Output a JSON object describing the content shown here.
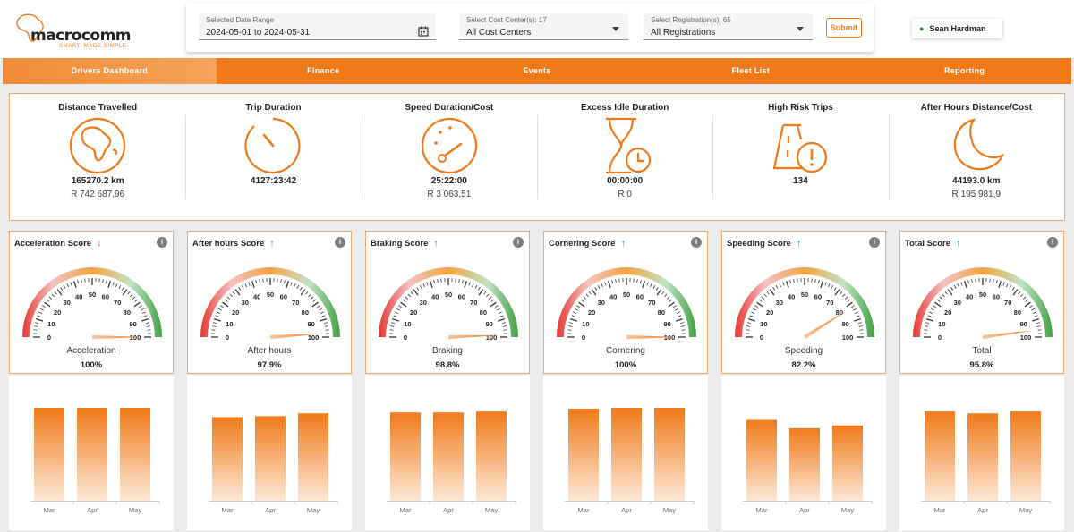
{
  "app": {
    "logo_text_a": "macro",
    "logo_text_b": "comm",
    "logo_tagline": "SMART. MADE SIMPLE"
  },
  "filters": {
    "date_range": {
      "label": "Selected Date Range",
      "value": "2024-05-01 to 2024-05-31",
      "icon": "calendar-icon"
    },
    "cost_center": {
      "label": "Select Cost Center(s): 17",
      "value": "All Cost Centers"
    },
    "registration": {
      "label": "Select Registration(s): 65",
      "value": "All Registrations"
    },
    "submit_label": "Submit"
  },
  "user": {
    "name": "Sean Hardman",
    "icon": "user-icon"
  },
  "nav": {
    "tabs": [
      {
        "label": "Drivers Dashboard",
        "active": true
      },
      {
        "label": "Finance",
        "active": false
      },
      {
        "label": "Events",
        "active": false
      },
      {
        "label": "Fleet List",
        "active": false
      },
      {
        "label": "Reporting",
        "active": false
      }
    ]
  },
  "summary": [
    {
      "title": "Distance Travelled",
      "icon": "globe-icon",
      "value": "165270.2 km",
      "cost": "R 742 687,96"
    },
    {
      "title": "Trip Duration",
      "icon": "timer-icon",
      "value": "4127:23:42",
      "cost": ""
    },
    {
      "title": "Speed Duration/Cost",
      "icon": "speedometer-icon",
      "value": "25:22:00",
      "cost": "R 3 063,51"
    },
    {
      "title": "Excess Idle Duration",
      "icon": "hourglass-clock-icon",
      "value": "00:00:00",
      "cost": "R 0"
    },
    {
      "title": "High Risk Trips",
      "icon": "road-warning-icon",
      "value": "134",
      "cost": ""
    },
    {
      "title": "After Hours Distance/Cost",
      "icon": "moon-icon",
      "value": "44193.0 km",
      "cost": "R 195 981,9"
    }
  ],
  "gauge_ticks": [
    "0",
    "10",
    "20",
    "30",
    "40",
    "50",
    "60",
    "70",
    "80",
    "90",
    "100"
  ],
  "colors": {
    "accent": "#f07a1a",
    "trend_up": "#2e9a45",
    "trend_down": "#d83a3a"
  },
  "scores": [
    {
      "title": "Acceleration Score",
      "trend": "down",
      "trend_glyph": "↓",
      "label": "Acceleration",
      "value_text": "100%",
      "value": 100,
      "months": [
        "Mar",
        "Apr",
        "May"
      ],
      "bars": [
        100,
        100,
        100
      ]
    },
    {
      "title": "After hours Score",
      "trend": "up",
      "trend_glyph": "↑",
      "label": "After hours",
      "value_text": "97.9%",
      "value": 97.9,
      "months": [
        "Mar",
        "Apr",
        "May"
      ],
      "bars": [
        90,
        91,
        94
      ]
    },
    {
      "title": "Braking Score",
      "trend": "up",
      "trend_glyph": "↑",
      "label": "Braking",
      "value_text": "98.8%",
      "value": 98.8,
      "months": [
        "Mar",
        "Apr",
        "May"
      ],
      "bars": [
        95,
        95,
        96
      ]
    },
    {
      "title": "Cornering Score",
      "trend": "up",
      "trend_glyph": "↑",
      "label": "Cornering",
      "value_text": "100%",
      "value": 100,
      "months": [
        "Mar",
        "Apr",
        "May"
      ],
      "bars": [
        99,
        100,
        100
      ]
    },
    {
      "title": "Speeding Score",
      "trend": "up",
      "trend_glyph": "↑",
      "label": "Speeding",
      "value_text": "82.2%",
      "value": 82.2,
      "months": [
        "Mar",
        "Apr",
        "May"
      ],
      "bars": [
        87,
        78,
        81
      ]
    },
    {
      "title": "Total Score",
      "trend": "up",
      "trend_glyph": "↑",
      "label": "Total",
      "value_text": "95.8%",
      "value": 95.8,
      "months": [
        "Mar",
        "Apr",
        "May"
      ],
      "bars": [
        96,
        94,
        96
      ]
    }
  ],
  "chart_data": [
    {
      "type": "bar",
      "title": "Acceleration Score",
      "categories": [
        "Mar",
        "Apr",
        "May"
      ],
      "values": [
        100,
        100,
        100
      ]
    },
    {
      "type": "bar",
      "title": "After hours Score",
      "categories": [
        "Mar",
        "Apr",
        "May"
      ],
      "values": [
        90,
        91,
        94
      ]
    },
    {
      "type": "bar",
      "title": "Braking Score",
      "categories": [
        "Mar",
        "Apr",
        "May"
      ],
      "values": [
        95,
        95,
        96
      ]
    },
    {
      "type": "bar",
      "title": "Cornering Score",
      "categories": [
        "Mar",
        "Apr",
        "May"
      ],
      "values": [
        99,
        100,
        100
      ]
    },
    {
      "type": "bar",
      "title": "Speeding Score",
      "categories": [
        "Mar",
        "Apr",
        "May"
      ],
      "values": [
        87,
        78,
        81
      ]
    },
    {
      "type": "bar",
      "title": "Total Score",
      "categories": [
        "Mar",
        "Apr",
        "May"
      ],
      "values": [
        96,
        94,
        96
      ]
    }
  ]
}
